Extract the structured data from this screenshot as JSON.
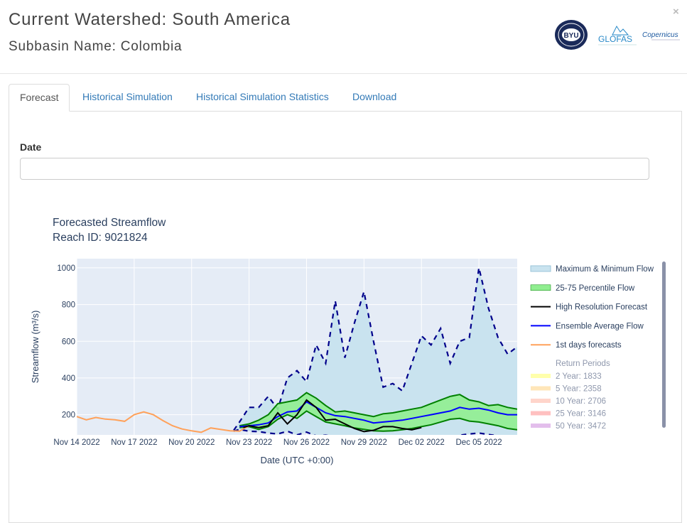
{
  "header": {
    "watershed_title": "Current Watershed: South America",
    "subbasin_title": "Subbasin Name: Colombia",
    "close_symbol": "×",
    "logos": [
      {
        "name": "byu-logo",
        "text": "BYU"
      },
      {
        "name": "glofas-logo",
        "text": "GLOFAS"
      },
      {
        "name": "copernicus-logo",
        "text": "Copernicus"
      }
    ]
  },
  "tabs": [
    {
      "label": "Forecast",
      "active": true
    },
    {
      "label": "Historical Simulation",
      "active": false
    },
    {
      "label": "Historical Simulation Statistics",
      "active": false
    },
    {
      "label": "Download",
      "active": false
    }
  ],
  "date_field": {
    "label": "Date",
    "value": ""
  },
  "chart_data": {
    "type": "line",
    "title": "Forecasted Streamflow",
    "subtitle": "Reach ID: 9021824",
    "xlabel": "Date (UTC +0:00)",
    "ylabel": "Streamflow (m³/s)",
    "ylim": [
      90,
      1050
    ],
    "xlim": [
      "2022-11-14",
      "2022-12-07"
    ],
    "x_ticks": [
      "Nov 14 2022",
      "Nov 17 2022",
      "Nov 20 2022",
      "Nov 23 2022",
      "Nov 26 2022",
      "Nov 29 2022",
      "Dec 02 2022",
      "Dec 05 2022"
    ],
    "y_ticks": [
      200,
      400,
      600,
      800,
      1000
    ],
    "grid": true,
    "legend_position": "right",
    "colors": {
      "plot_bg": "#e5ecf6",
      "max_min_fill": "#c9e3ef",
      "max_min_line": "#00008b",
      "percentile_fill": "#90ee90",
      "percentile_line": "#008000",
      "high_res": "#000000",
      "ensemble": "#0000ff",
      "first_days": "#ffa15a"
    },
    "series": [
      {
        "name": "1st days forecasts",
        "x": [
          "2022-11-14",
          "2022-11-14.5",
          "2022-11-15",
          "2022-11-15.5",
          "2022-11-16",
          "2022-11-16.5",
          "2022-11-17",
          "2022-11-17.5",
          "2022-11-18",
          "2022-11-18.5",
          "2022-11-19",
          "2022-11-19.5",
          "2022-11-20",
          "2022-11-20.5",
          "2022-11-21",
          "2022-11-21.5",
          "2022-11-22",
          "2022-11-22.5",
          "2022-11-23"
        ],
        "values": [
          190,
          172,
          185,
          176,
          172,
          164,
          200,
          215,
          200,
          168,
          140,
          122,
          112,
          104,
          128,
          120,
          112,
          110,
          140
        ]
      },
      {
        "name": "Maximum & Minimum Flow",
        "x": [
          "2022-11-22.2",
          "2022-11-22.5",
          "2022-11-23",
          "2022-11-23.5",
          "2022-11-24",
          "2022-11-24.5",
          "2022-11-25",
          "2022-11-25.5",
          "2022-11-26",
          "2022-11-26.5",
          "2022-11-27",
          "2022-11-27.5",
          "2022-11-28",
          "2022-11-28.5",
          "2022-11-29",
          "2022-11-29.5",
          "2022-11-30",
          "2022-11-30.5",
          "2022-12-01",
          "2022-12-01.5",
          "2022-12-02",
          "2022-12-02.5",
          "2022-12-03",
          "2022-12-03.5",
          "2022-12-04",
          "2022-12-04.5",
          "2022-12-05",
          "2022-12-05.5",
          "2022-12-06",
          "2022-12-06.5",
          "2022-12-07"
        ],
        "max": [
          115,
          160,
          240,
          240,
          300,
          230,
          400,
          440,
          380,
          580,
          480,
          820,
          510,
          700,
          870,
          600,
          350,
          370,
          330,
          480,
          630,
          580,
          670,
          480,
          600,
          620,
          1000,
          780,
          620,
          530,
          570
        ],
        "min": [
          110,
          120,
          110,
          108,
          100,
          95,
          110,
          90,
          105,
          85,
          88,
          80,
          78,
          80,
          75,
          72,
          70,
          72,
          68,
          72,
          78,
          80,
          76,
          80,
          88,
          95,
          100,
          92,
          85,
          70,
          60
        ]
      },
      {
        "name": "25-75 Percentile Flow",
        "x": [
          "2022-11-22.5",
          "2022-11-23",
          "2022-11-23.5",
          "2022-11-24",
          "2022-11-24.5",
          "2022-11-25",
          "2022-11-25.5",
          "2022-11-26",
          "2022-11-26.5",
          "2022-11-27",
          "2022-11-27.5",
          "2022-11-28",
          "2022-11-28.5",
          "2022-11-29",
          "2022-11-29.5",
          "2022-11-30",
          "2022-11-30.5",
          "2022-12-01",
          "2022-12-01.5",
          "2022-12-02",
          "2022-12-02.5",
          "2022-12-03",
          "2022-12-03.5",
          "2022-12-04",
          "2022-12-04.5",
          "2022-12-05",
          "2022-12-05.5",
          "2022-12-06",
          "2022-12-06.5",
          "2022-12-07"
        ],
        "p75": [
          140,
          150,
          170,
          200,
          260,
          270,
          280,
          320,
          290,
          250,
          215,
          220,
          210,
          200,
          190,
          205,
          210,
          220,
          230,
          240,
          260,
          280,
          300,
          310,
          280,
          270,
          250,
          255,
          240,
          230
        ],
        "p25": [
          130,
          135,
          120,
          135,
          175,
          200,
          180,
          220,
          190,
          160,
          150,
          140,
          128,
          120,
          112,
          110,
          112,
          118,
          125,
          135,
          145,
          160,
          175,
          180,
          165,
          160,
          150,
          140,
          125,
          118
        ]
      },
      {
        "name": "Ensemble Average Flow",
        "x": [
          "2022-11-22.5",
          "2022-11-23",
          "2022-11-23.5",
          "2022-11-24",
          "2022-11-24.5",
          "2022-11-25",
          "2022-11-25.5",
          "2022-11-26",
          "2022-11-26.5",
          "2022-11-27",
          "2022-11-27.5",
          "2022-11-28",
          "2022-11-28.5",
          "2022-11-29",
          "2022-11-29.5",
          "2022-11-30",
          "2022-11-30.5",
          "2022-12-01",
          "2022-12-01.5",
          "2022-12-02",
          "2022-12-02.5",
          "2022-12-03",
          "2022-12-03.5",
          "2022-12-04",
          "2022-12-04.5",
          "2022-12-05",
          "2022-12-05.5",
          "2022-12-06",
          "2022-12-06.5",
          "2022-12-07"
        ],
        "values": [
          135,
          140,
          145,
          155,
          190,
          215,
          220,
          270,
          240,
          210,
          195,
          190,
          180,
          170,
          155,
          160,
          165,
          170,
          180,
          190,
          200,
          210,
          220,
          240,
          230,
          235,
          225,
          210,
          200,
          200
        ]
      },
      {
        "name": "High Resolution Forecast",
        "x": [
          "2022-11-22.7",
          "2022-11-23",
          "2022-11-23.5",
          "2022-11-24",
          "2022-11-24.5",
          "2022-11-25",
          "2022-11-25.5",
          "2022-11-26",
          "2022-11-26.5",
          "2022-11-27",
          "2022-11-27.5",
          "2022-11-28",
          "2022-11-28.5",
          "2022-11-29",
          "2022-11-29.5",
          "2022-11-30",
          "2022-11-30.5",
          "2022-12-01",
          "2022-12-01.5",
          "2022-12-02"
        ],
        "values": [
          130,
          140,
          130,
          140,
          210,
          150,
          200,
          280,
          240,
          170,
          175,
          150,
          125,
          108,
          115,
          135,
          135,
          125,
          118,
          130
        ]
      }
    ],
    "legend": [
      {
        "label": "Maximum & Minimum Flow"
      },
      {
        "label": "25-75 Percentile Flow"
      },
      {
        "label": "High Resolution Forecast"
      },
      {
        "label": "Ensemble Average Flow"
      },
      {
        "label": "1st days forecasts"
      }
    ],
    "return_periods": {
      "title": "Return Periods",
      "items": [
        {
          "label": "2 Year: 1833",
          "color": "#ffff66"
        },
        {
          "label": "5 Year: 2358",
          "color": "#ffd27f"
        },
        {
          "label": "10 Year: 2706",
          "color": "#ffb2a0"
        },
        {
          "label": "25 Year: 3146",
          "color": "#ff8c8c"
        },
        {
          "label": "50 Year: 3472",
          "color": "#cc88dd"
        }
      ]
    }
  }
}
